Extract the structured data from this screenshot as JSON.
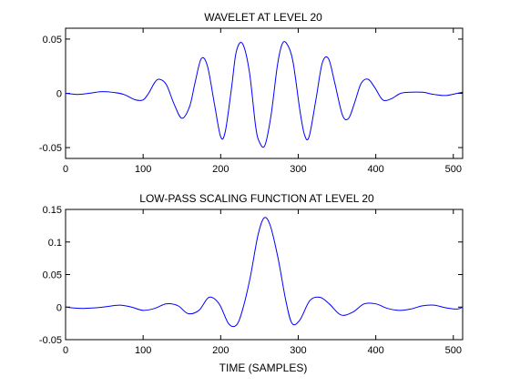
{
  "chart_data": [
    {
      "type": "line",
      "title": "WAVELET AT LEVEL 20",
      "xlabel": "",
      "ylabel": "",
      "xlim": [
        0,
        512
      ],
      "ylim": [
        -0.06,
        0.06
      ],
      "grid": false,
      "legend": "none",
      "xticks": [
        0,
        100,
        200,
        300,
        400,
        500
      ],
      "xtick_labels": [
        "0",
        "100",
        "200",
        "300",
        "400",
        "500"
      ],
      "yticks": [
        -0.05,
        0,
        0.05
      ],
      "ytick_labels": [
        "-0.05",
        "0",
        "0.05"
      ],
      "line_color": "#0000ff",
      "series": [
        {
          "x": [
            0,
            15,
            30,
            45,
            60,
            75,
            90,
            100,
            107,
            115,
            121,
            130,
            140,
            150,
            160,
            167,
            175,
            183,
            192,
            200,
            206,
            214,
            220,
            228,
            237,
            245,
            250,
            257,
            265,
            273,
            279,
            285,
            293,
            302,
            308,
            314,
            323,
            331,
            339,
            347,
            357,
            365,
            373,
            381,
            390,
            399,
            409,
            420,
            432,
            445,
            460,
            475,
            490,
            505,
            512
          ],
          "y": [
            0,
            -0.001,
            0,
            0.0015,
            0.001,
            -0.001,
            -0.006,
            -0.006,
            0,
            0.01,
            0.013,
            0.008,
            -0.01,
            -0.023,
            -0.012,
            0.01,
            0.032,
            0.025,
            -0.01,
            -0.04,
            -0.035,
            0.005,
            0.038,
            0.046,
            0.02,
            -0.03,
            -0.045,
            -0.048,
            -0.02,
            0.025,
            0.045,
            0.046,
            0.03,
            -0.015,
            -0.038,
            -0.04,
            -0.005,
            0.028,
            0.032,
            0.01,
            -0.02,
            -0.023,
            -0.008,
            0.009,
            0.013,
            0.005,
            -0.006,
            -0.005,
            0,
            0.001,
            0.001,
            -0.001,
            -0.002,
            0,
            0.001
          ]
        }
      ]
    },
    {
      "type": "line",
      "title": "LOW-PASS SCALING FUNCTION AT LEVEL 20",
      "xlabel": "TIME (SAMPLES)",
      "ylabel": "",
      "xlim": [
        0,
        512
      ],
      "ylim": [
        -0.05,
        0.15
      ],
      "grid": false,
      "legend": "none",
      "xticks": [
        0,
        100,
        200,
        300,
        400,
        500
      ],
      "xtick_labels": [
        "0",
        "100",
        "200",
        "300",
        "400",
        "500"
      ],
      "yticks": [
        -0.05,
        0,
        0.05,
        0.1,
        0.15
      ],
      "ytick_labels": [
        "-0.05",
        "0",
        "0.05",
        "0.1",
        "0.15"
      ],
      "line_color": "#0000ff",
      "series": [
        {
          "x": [
            0,
            20,
            40,
            55,
            70,
            85,
            100,
            115,
            130,
            145,
            158,
            172,
            185,
            198,
            210,
            220,
            228,
            238,
            248,
            256,
            264,
            274,
            284,
            292,
            302,
            315,
            328,
            340,
            355,
            370,
            385,
            400,
            415,
            430,
            445,
            460,
            475,
            490,
            505,
            512
          ],
          "y": [
            0,
            -0.002,
            -0.001,
            0.001,
            0.003,
            0,
            -0.005,
            -0.002,
            0.005,
            0.002,
            -0.01,
            -0.005,
            0.015,
            0.005,
            -0.025,
            -0.028,
            -0.005,
            0.045,
            0.11,
            0.137,
            0.125,
            0.075,
            0.01,
            -0.025,
            -0.02,
            0.01,
            0.015,
            0.005,
            -0.012,
            -0.008,
            0.005,
            0.005,
            -0.002,
            -0.005,
            -0.003,
            0.002,
            0.003,
            -0.001,
            -0.003,
            0
          ]
        }
      ]
    }
  ]
}
